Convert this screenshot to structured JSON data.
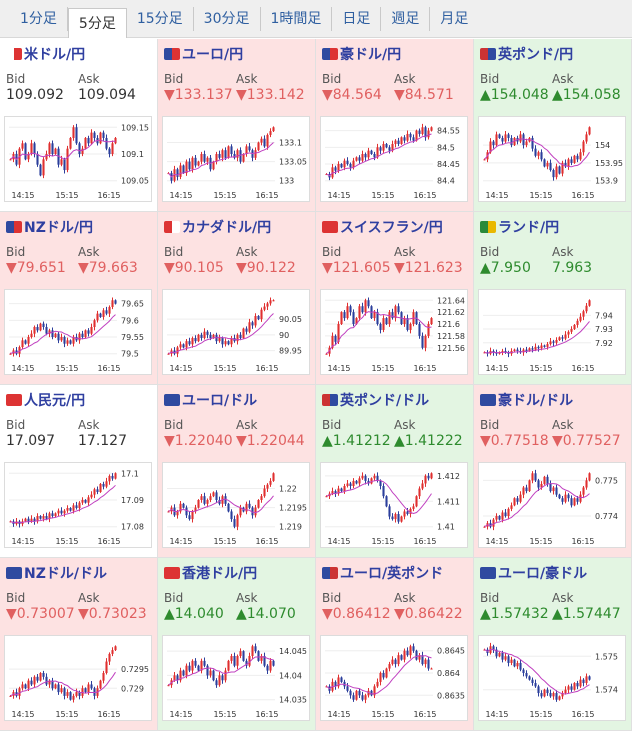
{
  "tabs": [
    "1分足",
    "5分足",
    "15分足",
    "30分足",
    "1時間足",
    "日足",
    "週足",
    "月足"
  ],
  "active_tab": 1,
  "colors": {
    "up_bg": "#e3f5e2",
    "down_bg": "#fde2e2",
    "up_text": "#2e8b2e",
    "down_text": "#e06060",
    "candle_up": "#e03030",
    "candle_down": "#2c3f9c",
    "ma_line": "#c040c0"
  },
  "bid_label": "Bid",
  "ask_label": "Ask",
  "cards": [
    {
      "pair": "米ドル/円",
      "flag": [
        "#ffffff",
        "#d33"
      ],
      "trend": "neutral",
      "bid": "109.092",
      "ask": "109.094",
      "ticks": [
        "109.15",
        "109.1",
        "109.05"
      ],
      "xlabels": [
        "14:15",
        "15:15",
        "16:15"
      ],
      "series": [
        109.09,
        109.1,
        109.08,
        109.11,
        109.12,
        109.09,
        109.1,
        109.12,
        109.1,
        109.08,
        109.06,
        109.09,
        109.1,
        109.12,
        109.1,
        109.11,
        109.08,
        109.09,
        109.07,
        109.11,
        109.13,
        109.15,
        109.12,
        109.1,
        109.11,
        109.13,
        109.12,
        109.14,
        109.13,
        109.12,
        109.14,
        109.13,
        109.11,
        109.1,
        109.12,
        109.13
      ]
    },
    {
      "pair": "ユーロ/円",
      "flag": [
        "#2f4aa0",
        "#d33"
      ],
      "trend": "down",
      "bid": "▼133.137",
      "ask": "▼133.142",
      "ticks": [
        "133.1",
        "133.05",
        "133"
      ],
      "xlabels": [
        "14:15",
        "15:15",
        "16:15"
      ],
      "series": [
        133.02,
        133.0,
        133.03,
        133.01,
        133.04,
        133.02,
        133.05,
        133.03,
        133.06,
        133.04,
        133.05,
        133.07,
        133.05,
        133.06,
        133.03,
        133.05,
        133.07,
        133.06,
        133.08,
        133.06,
        133.09,
        133.07,
        133.06,
        133.08,
        133.05,
        133.07,
        133.09,
        133.08,
        133.06,
        133.08,
        133.1,
        133.11,
        133.09,
        133.12,
        133.13,
        133.14
      ]
    },
    {
      "pair": "豪ドル/円",
      "flag": [
        "#2f4aa0",
        "#d33"
      ],
      "trend": "down",
      "bid": "▼84.564",
      "ask": "▼84.571",
      "ticks": [
        "84.55",
        "84.5",
        "84.45",
        "84.4"
      ],
      "xlabels": [
        "14:15",
        "15:15",
        "16:15"
      ],
      "series": [
        84.42,
        84.41,
        84.44,
        84.43,
        84.45,
        84.44,
        84.46,
        84.45,
        84.44,
        84.46,
        84.47,
        84.46,
        84.48,
        84.47,
        84.49,
        84.48,
        84.47,
        84.5,
        84.49,
        84.51,
        84.5,
        84.49,
        84.51,
        84.52,
        84.51,
        84.53,
        84.52,
        84.54,
        84.53,
        84.52,
        84.55,
        84.54,
        84.56,
        84.53,
        84.55,
        84.56
      ]
    },
    {
      "pair": "英ポンド/円",
      "flag": [
        "#c33",
        "#2f4aa0"
      ],
      "trend": "up",
      "bid": "▲154.048",
      "ask": "▲154.058",
      "ticks": [
        "154",
        "153.95",
        "153.9"
      ],
      "xlabels": [
        "14:15",
        "15:15",
        "16:15"
      ],
      "series": [
        153.96,
        153.98,
        154.01,
        154.0,
        154.03,
        154.02,
        154.01,
        154.03,
        154.02,
        154.0,
        154.02,
        154.01,
        154.03,
        154.0,
        154.01,
        154.02,
        153.99,
        153.97,
        153.98,
        153.96,
        153.94,
        153.95,
        153.93,
        153.91,
        153.94,
        153.92,
        153.95,
        153.94,
        153.96,
        153.95,
        153.97,
        153.96,
        153.98,
        154.01,
        154.03,
        154.05
      ]
    },
    {
      "pair": "NZドル/円",
      "flag": [
        "#2f4aa0",
        "#d33"
      ],
      "trend": "down",
      "bid": "▼79.651",
      "ask": "▼79.663",
      "ticks": [
        "79.65",
        "79.6",
        "79.55",
        "79.5"
      ],
      "xlabels": [
        "14:15",
        "15:15",
        "16:15"
      ],
      "series": [
        79.5,
        79.51,
        79.5,
        79.52,
        79.54,
        79.53,
        79.55,
        79.56,
        79.58,
        79.57,
        79.59,
        79.58,
        79.56,
        79.57,
        79.55,
        79.56,
        79.54,
        79.55,
        79.53,
        79.54,
        79.53,
        79.55,
        79.54,
        79.56,
        79.55,
        79.57,
        79.56,
        79.58,
        79.6,
        79.62,
        79.61,
        79.63,
        79.62,
        79.64,
        79.66,
        79.65
      ]
    },
    {
      "pair": "カナダドル/円",
      "flag": [
        "#d33",
        "#ffffff"
      ],
      "trend": "down",
      "bid": "▼90.105",
      "ask": "▼90.122",
      "ticks": [
        "90.05",
        "90",
        "89.95"
      ],
      "xlabels": [
        "14:15",
        "15:15",
        "16:15"
      ],
      "series": [
        89.94,
        89.95,
        89.94,
        89.96,
        89.97,
        89.96,
        89.98,
        89.97,
        89.99,
        89.98,
        90.0,
        89.99,
        90.01,
        90.0,
        89.99,
        90.0,
        89.98,
        89.99,
        89.97,
        89.98,
        89.97,
        89.99,
        89.98,
        90.0,
        89.99,
        90.02,
        90.01,
        90.04,
        90.03,
        90.06,
        90.05,
        90.08,
        90.09,
        90.1,
        90.11,
        90.11
      ]
    },
    {
      "pair": "スイスフラン/円",
      "flag": [
        "#d33",
        "#d33"
      ],
      "trend": "down",
      "bid": "▼121.605",
      "ask": "▼121.623",
      "ticks": [
        "121.64",
        "121.62",
        "121.6",
        "121.58",
        "121.56"
      ],
      "xlabels": [
        "14:15",
        "15:15",
        "16:15"
      ],
      "series": [
        121.55,
        121.56,
        121.58,
        121.57,
        121.6,
        121.62,
        121.61,
        121.63,
        121.62,
        121.6,
        121.61,
        121.63,
        121.62,
        121.64,
        121.63,
        121.61,
        121.62,
        121.6,
        121.59,
        121.61,
        121.6,
        121.62,
        121.61,
        121.63,
        121.62,
        121.6,
        121.61,
        121.59,
        121.6,
        121.62,
        121.6,
        121.58,
        121.56,
        121.58,
        121.6,
        121.61
      ]
    },
    {
      "pair": "ランド/円",
      "flag": [
        "#2a8a3a",
        "#e9b800"
      ],
      "trend": "up",
      "bid": "▲7.950",
      "ask": "7.963",
      "ticks": [
        "7.94",
        "7.93",
        "7.92"
      ],
      "xlabels": [
        "14:15",
        "15:15",
        "16:15"
      ],
      "series": [
        7.913,
        7.912,
        7.914,
        7.913,
        7.912,
        7.913,
        7.914,
        7.913,
        7.912,
        7.914,
        7.915,
        7.914,
        7.913,
        7.915,
        7.914,
        7.916,
        7.915,
        7.917,
        7.916,
        7.918,
        7.917,
        7.919,
        7.921,
        7.92,
        7.922,
        7.924,
        7.923,
        7.926,
        7.928,
        7.93,
        7.933,
        7.936,
        7.939,
        7.943,
        7.947,
        7.951
      ]
    },
    {
      "pair": "人民元/円",
      "flag": [
        "#d33",
        "#d33"
      ],
      "trend": "neutral",
      "bid": "17.097",
      "ask": "17.127",
      "ticks": [
        "17.1",
        "17.09",
        "17.08"
      ],
      "xlabels": [
        "14:15",
        "15:15",
        "16:15"
      ],
      "series": [
        17.082,
        17.081,
        17.082,
        17.081,
        17.082,
        17.083,
        17.082,
        17.083,
        17.082,
        17.084,
        17.083,
        17.084,
        17.083,
        17.085,
        17.084,
        17.085,
        17.086,
        17.085,
        17.086,
        17.087,
        17.086,
        17.088,
        17.087,
        17.089,
        17.09,
        17.089,
        17.091,
        17.092,
        17.094,
        17.093,
        17.096,
        17.095,
        17.097,
        17.099,
        17.098,
        17.1
      ]
    },
    {
      "pair": "ユーロ/ドル",
      "flag": [
        "#2f4aa0",
        "#2f4aa0"
      ],
      "trend": "down",
      "bid": "▼1.22040",
      "ask": "▼1.22044",
      "ticks": [
        "1.22",
        "1.2195",
        "1.219"
      ],
      "xlabels": [
        "14:15",
        "15:15",
        "16:15"
      ],
      "series": [
        1.2194,
        1.2195,
        1.2193,
        1.2194,
        1.2196,
        1.2195,
        1.2193,
        1.2192,
        1.2194,
        1.2195,
        1.2197,
        1.2198,
        1.2196,
        1.2197,
        1.2198,
        1.2199,
        1.2197,
        1.2196,
        1.2198,
        1.2196,
        1.2194,
        1.2192,
        1.219,
        1.2193,
        1.2195,
        1.2194,
        1.2196,
        1.2195,
        1.2193,
        1.2195,
        1.2197,
        1.2198,
        1.22,
        1.2201,
        1.2202,
        1.2204
      ]
    },
    {
      "pair": "英ポンド/ドル",
      "flag": [
        "#c33",
        "#2f4aa0"
      ],
      "trend": "up",
      "bid": "▲1.41212",
      "ask": "▲1.41222",
      "ticks": [
        "1.412",
        "1.411",
        "1.41"
      ],
      "xlabels": [
        "14:15",
        "15:15",
        "16:15"
      ],
      "series": [
        1.4112,
        1.4113,
        1.4114,
        1.4113,
        1.4115,
        1.4114,
        1.4116,
        1.4117,
        1.4116,
        1.4118,
        1.4117,
        1.4119,
        1.412,
        1.4118,
        1.4117,
        1.4119,
        1.412,
        1.4118,
        1.4116,
        1.4112,
        1.4108,
        1.4104,
        1.4103,
        1.4105,
        1.4102,
        1.4104,
        1.4106,
        1.4105,
        1.4107,
        1.4108,
        1.4112,
        1.4115,
        1.4117,
        1.412,
        1.4119,
        1.4121
      ]
    },
    {
      "pair": "豪ドル/ドル",
      "flag": [
        "#2f4aa0",
        "#2f4aa0"
      ],
      "trend": "down",
      "bid": "▼0.77518",
      "ask": "▼0.77527",
      "ticks": [
        "0.775",
        "0.774"
      ],
      "xlabels": [
        "14:15",
        "15:15",
        "16:15"
      ],
      "series": [
        0.7737,
        0.7738,
        0.7737,
        0.7739,
        0.774,
        0.7739,
        0.7741,
        0.774,
        0.7742,
        0.7743,
        0.7745,
        0.7744,
        0.7746,
        0.7748,
        0.7747,
        0.775,
        0.7752,
        0.775,
        0.7748,
        0.7749,
        0.7751,
        0.7749,
        0.7747,
        0.7748,
        0.7746,
        0.7745,
        0.7744,
        0.7746,
        0.7745,
        0.7743,
        0.7745,
        0.7744,
        0.7746,
        0.7748,
        0.775,
        0.7752
      ]
    },
    {
      "pair": "NZドル/ドル",
      "flag": [
        "#2f4aa0",
        "#2f4aa0"
      ],
      "trend": "down",
      "bid": "▼0.73007",
      "ask": "▼0.73023",
      "ticks": [
        "0.7295",
        "0.729"
      ],
      "xlabels": [
        "14:15",
        "15:15",
        "16:15"
      ],
      "series": [
        0.7288,
        0.7289,
        0.7288,
        0.729,
        0.7291,
        0.729,
        0.7292,
        0.7291,
        0.7293,
        0.7292,
        0.7294,
        0.7293,
        0.7291,
        0.7292,
        0.729,
        0.7291,
        0.7289,
        0.729,
        0.7288,
        0.7289,
        0.7287,
        0.7288,
        0.7289,
        0.7288,
        0.729,
        0.7289,
        0.7291,
        0.729,
        0.7288,
        0.729,
        0.7292,
        0.7294,
        0.7297,
        0.7299,
        0.73,
        0.7301
      ]
    },
    {
      "pair": "香港ドル/円",
      "flag": [
        "#d33",
        "#d33"
      ],
      "trend": "up",
      "bid": "▲14.040",
      "ask": "▲14.070",
      "ticks": [
        "14.045",
        "14.04",
        "14.035"
      ],
      "xlabels": [
        "14:15",
        "15:15",
        "16:15"
      ],
      "series": [
        14.038,
        14.039,
        14.04,
        14.039,
        14.041,
        14.04,
        14.042,
        14.041,
        14.043,
        14.042,
        14.041,
        14.043,
        14.042,
        14.04,
        14.041,
        14.039,
        14.038,
        14.04,
        14.039,
        14.041,
        14.043,
        14.044,
        14.042,
        14.044,
        14.045,
        14.043,
        14.042,
        14.044,
        14.046,
        14.045,
        14.043,
        14.044,
        14.042,
        14.041,
        14.043,
        14.042
      ]
    },
    {
      "pair": "ユーロ/英ポンド",
      "flag": [
        "#2f4aa0",
        "#c33"
      ],
      "trend": "down",
      "bid": "▼0.86412",
      "ask": "▼0.86422",
      "ticks": [
        "0.8645",
        "0.864",
        "0.8635"
      ],
      "xlabels": [
        "14:15",
        "15:15",
        "16:15"
      ],
      "series": [
        0.8637,
        0.8636,
        0.8638,
        0.8637,
        0.8639,
        0.8638,
        0.8637,
        0.8636,
        0.8635,
        0.8634,
        0.8636,
        0.8635,
        0.8634,
        0.8635,
        0.8636,
        0.8635,
        0.8637,
        0.8638,
        0.864,
        0.8639,
        0.8641,
        0.8642,
        0.8643,
        0.8642,
        0.8644,
        0.8643,
        0.8645,
        0.8644,
        0.8646,
        0.8645,
        0.8643,
        0.8644,
        0.8642,
        0.8643,
        0.8641,
        0.8641
      ]
    },
    {
      "pair": "ユーロ/豪ドル",
      "flag": [
        "#2f4aa0",
        "#2f4aa0"
      ],
      "trend": "up",
      "bid": "▲1.57432",
      "ask": "▲1.57447",
      "ticks": [
        "1.575",
        "1.574"
      ],
      "xlabels": [
        "14:15",
        "15:15",
        "16:15"
      ],
      "series": [
        1.5752,
        1.5751,
        1.5753,
        1.5752,
        1.575,
        1.5751,
        1.5749,
        1.575,
        1.5748,
        1.5749,
        1.5747,
        1.5748,
        1.5746,
        1.5745,
        1.5744,
        1.5743,
        1.5742,
        1.5741,
        1.5739,
        1.5738,
        1.574,
        1.5739,
        1.5738,
        1.5739,
        1.5737,
        1.5738,
        1.5739,
        1.574,
        1.5741,
        1.574,
        1.5742,
        1.5741,
        1.5743,
        1.5742,
        1.5744,
        1.5743
      ]
    }
  ]
}
